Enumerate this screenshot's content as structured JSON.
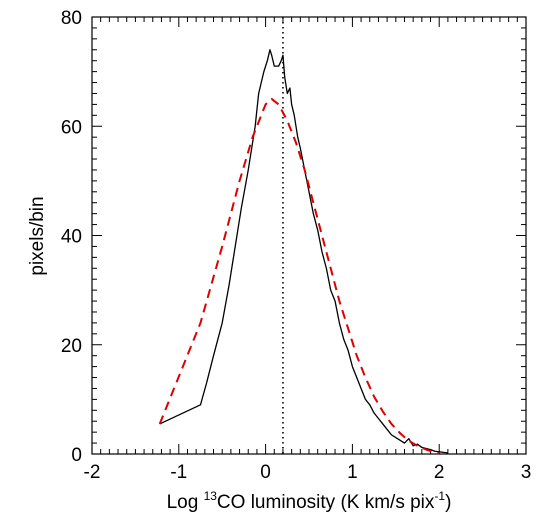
{
  "chart_data": {
    "type": "line",
    "xlabel_parts": [
      "Log ",
      "13",
      "CO luminosity (K km/s pix",
      "-1",
      ")"
    ],
    "ylabel": "pixels/bin",
    "xlim": [
      -2,
      3
    ],
    "ylim": [
      0,
      80
    ],
    "xticks": [
      -2,
      -1,
      0,
      1,
      2,
      3
    ],
    "yticks": [
      0,
      20,
      40,
      60,
      80
    ],
    "grid": false,
    "vline": {
      "x": 0.2,
      "style": "dotted",
      "color": "#000000"
    },
    "series": [
      {
        "style": "solid",
        "color": "#000000",
        "x": [
          -1.22,
          -0.75,
          -0.68,
          -0.6,
          -0.5,
          -0.42,
          -0.35,
          -0.28,
          -0.2,
          -0.12,
          -0.08,
          -0.02,
          0.02,
          0.05,
          0.07,
          0.1,
          0.15,
          0.18,
          0.2,
          0.22,
          0.25,
          0.28,
          0.3,
          0.33,
          0.37,
          0.4,
          0.45,
          0.5,
          0.55,
          0.6,
          0.65,
          0.7,
          0.75,
          0.8,
          0.85,
          0.9,
          0.95,
          1.0,
          1.05,
          1.1,
          1.15,
          1.2,
          1.25,
          1.3,
          1.35,
          1.4,
          1.45,
          1.5,
          1.55,
          1.6,
          1.65,
          1.7,
          1.75,
          1.8,
          1.85,
          1.9,
          1.95,
          2.0,
          2.05,
          2.1
        ],
        "y": [
          5.5,
          9,
          13,
          18,
          24,
          31,
          38,
          45,
          52,
          60,
          66,
          70,
          72,
          74,
          73,
          71,
          71,
          72,
          73,
          69,
          66,
          67,
          64,
          62,
          58,
          56,
          52,
          48,
          44,
          41,
          37,
          34,
          30,
          28,
          24,
          21,
          19,
          16,
          14,
          12,
          10,
          9,
          7.5,
          6.5,
          5.5,
          4.5,
          3.5,
          3,
          2.5,
          2,
          2.8,
          1.5,
          1.8,
          1.2,
          1.0,
          0.8,
          0.5,
          0.4,
          0.3,
          0.2
        ]
      },
      {
        "style": "dashed",
        "color": "#dd0000",
        "x": [
          -1.22,
          -0.75,
          -0.5,
          -0.3,
          -0.15,
          0.0,
          0.07,
          0.15,
          0.25,
          0.35,
          0.45,
          0.55,
          0.65,
          0.75,
          0.85,
          0.95,
          1.05,
          1.15,
          1.25,
          1.35,
          1.45,
          1.55,
          1.65,
          1.75,
          1.85,
          1.95,
          2.0
        ],
        "y": [
          5.5,
          24,
          38,
          50,
          58,
          64,
          65,
          64,
          61,
          57,
          52,
          46,
          40,
          34,
          28,
          23,
          18,
          14,
          10.5,
          7.8,
          5.5,
          3.8,
          2.4,
          1.5,
          0.8,
          0.3,
          0.1
        ]
      }
    ]
  }
}
